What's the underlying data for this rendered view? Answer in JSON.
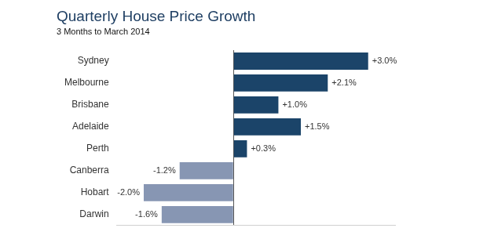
{
  "chart_data": {
    "type": "bar",
    "orientation": "horizontal",
    "title": "Quarterly House Price Growth",
    "subtitle": "3 Months to March 2014",
    "categories": [
      "Sydney",
      "Melbourne",
      "Brisbane",
      "Adelaide",
      "Perth",
      "Canberra",
      "Hobart",
      "Darwin"
    ],
    "values": [
      3.0,
      2.1,
      1.0,
      1.5,
      0.3,
      -1.2,
      -2.0,
      -1.6
    ],
    "value_labels": [
      "+3.0%",
      "+2.1%",
      "+1.0%",
      "+1.5%",
      "+0.3%",
      "-1.2%",
      "-2.0%",
      "-1.6%"
    ],
    "colors": [
      "#1b4469",
      "#1b4469",
      "#1b4469",
      "#1b4469",
      "#1b4469",
      "#8796b3",
      "#8796b3",
      "#8796b3"
    ],
    "xlim": [
      -2.6,
      3.6
    ],
    "xticks": [
      0
    ],
    "grid": true,
    "data_labels": true,
    "tick_labels": "y"
  }
}
